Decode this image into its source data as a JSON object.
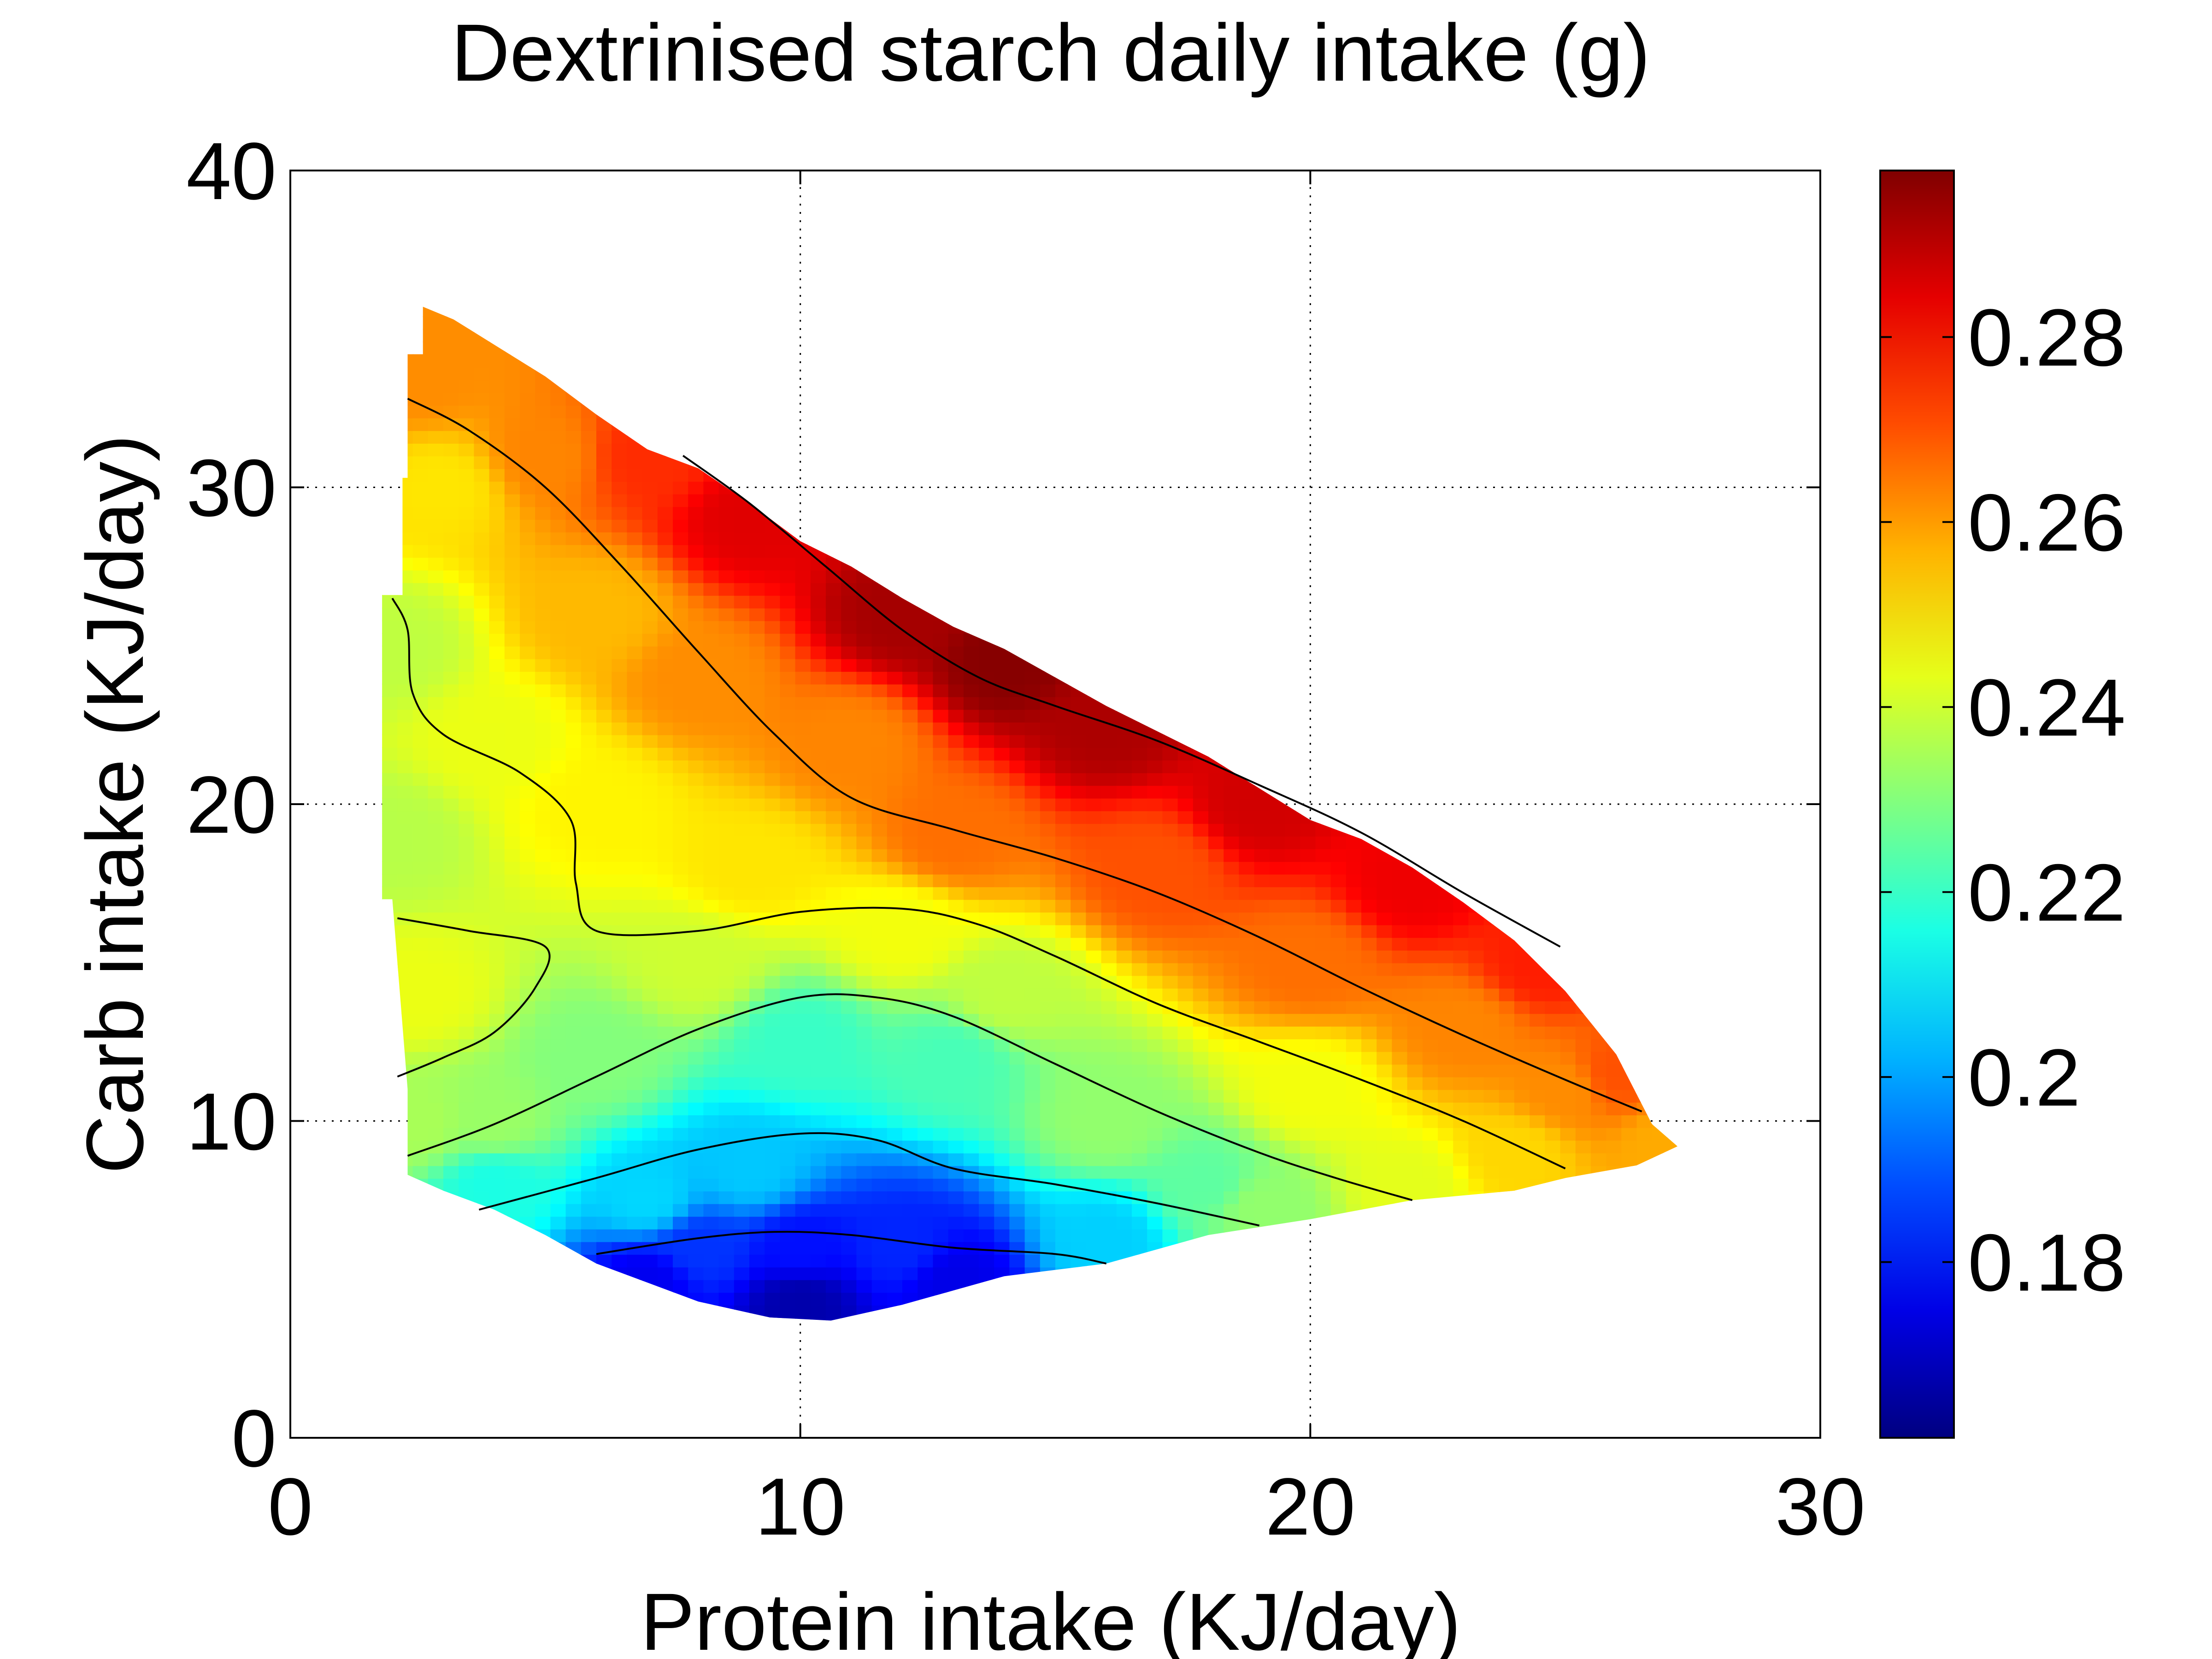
{
  "chart_data": {
    "type": "heatmap",
    "subtype": "filled-contour-surface",
    "title": "Dextrinised starch daily intake (g)",
    "xlabel": "Protein intake (KJ/day)",
    "ylabel": "Carb intake (KJ/day)",
    "xlim": [
      0,
      30
    ],
    "ylim": [
      0,
      40
    ],
    "x_ticks": [
      0,
      10,
      20,
      30
    ],
    "x_tick_labels": [
      "0",
      "10",
      "20",
      "30"
    ],
    "y_ticks": [
      0,
      10,
      20,
      30,
      40
    ],
    "y_tick_labels": [
      "0",
      "10",
      "20",
      "30",
      "40"
    ],
    "grid": true,
    "grid_style": "dotted",
    "colormap": "jet",
    "colorbar": {
      "position": "right",
      "range": [
        0.161,
        0.298
      ],
      "ticks": [
        0.18,
        0.2,
        0.22,
        0.24,
        0.26,
        0.28
      ],
      "tick_labels": [
        "0.18",
        "0.2",
        "0.22",
        "0.24",
        "0.26",
        "0.28"
      ]
    },
    "data_region_boundary": [
      [
        2.6,
        35.7
      ],
      [
        3.2,
        35.3
      ],
      [
        4,
        34.5
      ],
      [
        5,
        33.5
      ],
      [
        6,
        32.3
      ],
      [
        7,
        31.2
      ],
      [
        8,
        30.6
      ],
      [
        9,
        29.5
      ],
      [
        10,
        28.3
      ],
      [
        11,
        27.5
      ],
      [
        12,
        26.5
      ],
      [
        13,
        25.6
      ],
      [
        14,
        24.9
      ],
      [
        15,
        24.0
      ],
      [
        16,
        23.1
      ],
      [
        17,
        22.3
      ],
      [
        18,
        21.5
      ],
      [
        19,
        20.5
      ],
      [
        20,
        19.5
      ],
      [
        21,
        18.9
      ],
      [
        22,
        18.0
      ],
      [
        23,
        16.9
      ],
      [
        24,
        15.7
      ],
      [
        25,
        14.1
      ],
      [
        26,
        12.1
      ],
      [
        26.7,
        9.9
      ],
      [
        27.2,
        9.2
      ],
      [
        26.4,
        8.6
      ],
      [
        25,
        8.2
      ],
      [
        24,
        7.8
      ],
      [
        22,
        7.5
      ],
      [
        20,
        6.9
      ],
      [
        18,
        6.4
      ],
      [
        16,
        5.5
      ],
      [
        14,
        5.1
      ],
      [
        12,
        4.2
      ],
      [
        10.6,
        3.7
      ],
      [
        9.4,
        3.8
      ],
      [
        8,
        4.3
      ],
      [
        6,
        5.5
      ],
      [
        5,
        6.4
      ],
      [
        4,
        7.2
      ],
      [
        3,
        7.8
      ],
      [
        2.3,
        8.3
      ],
      [
        2.3,
        11
      ],
      [
        2.0,
        17
      ],
      [
        1.8,
        17
      ],
      [
        1.8,
        26.6
      ],
      [
        2.2,
        26.6
      ],
      [
        2.2,
        30.3
      ],
      [
        2.3,
        30.3
      ],
      [
        2.3,
        34.2
      ],
      [
        2.6,
        34.2
      ]
    ],
    "surface_model": {
      "description": "value(x,y) = sum of weights * anchor values (inverse-distance); anchors read from colour",
      "anchors": [
        [
          2.5,
          33.5,
          0.262
        ],
        [
          3,
          30,
          0.25
        ],
        [
          5,
          31,
          0.263
        ],
        [
          7,
          31,
          0.275
        ],
        [
          9,
          29,
          0.285
        ],
        [
          12,
          26,
          0.293
        ],
        [
          14,
          24.5,
          0.297
        ],
        [
          16,
          22.5,
          0.292
        ],
        [
          19,
          20,
          0.287
        ],
        [
          22,
          17.5,
          0.283
        ],
        [
          24.5,
          15,
          0.277
        ],
        [
          26,
          11.5,
          0.27
        ],
        [
          27,
          9.3,
          0.258
        ],
        [
          2,
          25,
          0.238
        ],
        [
          2,
          19,
          0.237
        ],
        [
          2.5,
          14,
          0.244
        ],
        [
          2.5,
          10,
          0.235
        ],
        [
          4,
          22,
          0.244
        ],
        [
          6,
          20,
          0.248
        ],
        [
          6,
          26,
          0.256
        ],
        [
          8,
          24,
          0.262
        ],
        [
          9,
          18,
          0.25
        ],
        [
          11,
          22,
          0.263
        ],
        [
          13,
          19,
          0.266
        ],
        [
          12,
          16,
          0.245
        ],
        [
          17,
          18,
          0.27
        ],
        [
          20,
          15,
          0.266
        ],
        [
          23,
          13,
          0.263
        ],
        [
          25,
          11,
          0.262
        ],
        [
          24,
          9,
          0.252
        ],
        [
          22,
          8,
          0.243
        ],
        [
          19,
          7.3,
          0.232
        ],
        [
          16,
          10,
          0.232
        ],
        [
          16,
          6.3,
          0.206
        ],
        [
          13,
          12,
          0.222
        ],
        [
          10,
          12.5,
          0.22
        ],
        [
          6,
          12,
          0.23
        ],
        [
          4,
          10,
          0.233
        ],
        [
          4,
          8,
          0.216
        ],
        [
          7,
          7.5,
          0.207
        ],
        [
          9,
          8.5,
          0.205
        ],
        [
          8,
          6,
          0.185
        ],
        [
          10,
          6,
          0.18
        ],
        [
          12,
          6,
          0.183
        ],
        [
          10,
          4.3,
          0.167
        ],
        [
          7,
          5,
          0.176
        ],
        [
          13,
          5,
          0.175
        ],
        [
          18,
          8,
          0.225
        ],
        [
          20,
          11,
          0.245
        ],
        [
          14,
          14,
          0.238
        ],
        [
          8,
          15,
          0.24
        ]
      ]
    },
    "contour_lines": [
      [
        [
          2.3,
          32.8
        ],
        [
          3.5,
          31.8
        ],
        [
          5,
          30
        ],
        [
          6.5,
          27.5
        ],
        [
          8,
          24.8
        ],
        [
          9.5,
          22.2
        ],
        [
          11,
          20.2
        ],
        [
          13,
          19.2
        ],
        [
          15,
          18.3
        ],
        [
          17,
          17.2
        ],
        [
          19,
          15.8
        ],
        [
          21,
          14.2
        ],
        [
          23,
          12.7
        ],
        [
          25,
          11.3
        ],
        [
          26.5,
          10.3
        ]
      ],
      [
        [
          7.7,
          31
        ],
        [
          9,
          29.5
        ],
        [
          10.5,
          27.5
        ],
        [
          12,
          25.5
        ],
        [
          13.5,
          24
        ],
        [
          15,
          23.1
        ],
        [
          17,
          22
        ],
        [
          19,
          20.6
        ],
        [
          21,
          19.1
        ],
        [
          23,
          17.2
        ],
        [
          24.9,
          15.5
        ]
      ],
      [
        [
          2,
          26.5
        ],
        [
          2.3,
          25.5
        ],
        [
          2.4,
          23.5
        ],
        [
          3,
          22.2
        ],
        [
          4.5,
          21
        ],
        [
          5.5,
          19.5
        ],
        [
          5.6,
          17.5
        ],
        [
          6,
          16
        ],
        [
          8,
          16
        ],
        [
          10,
          16.6
        ],
        [
          12,
          16.7
        ],
        [
          13.5,
          16.2
        ],
        [
          15,
          15.2
        ],
        [
          17,
          13.7
        ],
        [
          19,
          12.5
        ],
        [
          21,
          11.3
        ],
        [
          23,
          10
        ],
        [
          25,
          8.5
        ]
      ],
      [
        [
          2.1,
          16.4
        ],
        [
          3.5,
          16
        ],
        [
          5,
          15.5
        ],
        [
          4.8,
          14.2
        ],
        [
          4,
          12.8
        ],
        [
          3,
          12
        ],
        [
          2.1,
          11.4
        ]
      ],
      [
        [
          2.3,
          8.9
        ],
        [
          4,
          9.9
        ],
        [
          6,
          11.4
        ],
        [
          8,
          12.9
        ],
        [
          10,
          13.9
        ],
        [
          11.5,
          13.9
        ],
        [
          13,
          13.3
        ],
        [
          15,
          11.8
        ],
        [
          17,
          10.3
        ],
        [
          19,
          9
        ],
        [
          20.5,
          8.2
        ],
        [
          22,
          7.5
        ]
      ],
      [
        [
          3.7,
          7.2
        ],
        [
          6,
          8.2
        ],
        [
          8,
          9.1
        ],
        [
          10,
          9.6
        ],
        [
          11.5,
          9.4
        ],
        [
          13,
          8.5
        ],
        [
          15,
          8
        ],
        [
          17,
          7.4
        ],
        [
          19,
          6.7
        ]
      ],
      [
        [
          6,
          5.8
        ],
        [
          8,
          6.3
        ],
        [
          9.5,
          6.5
        ],
        [
          11,
          6.4
        ],
        [
          13,
          6
        ],
        [
          15,
          5.8
        ],
        [
          16,
          5.5
        ]
      ]
    ]
  }
}
